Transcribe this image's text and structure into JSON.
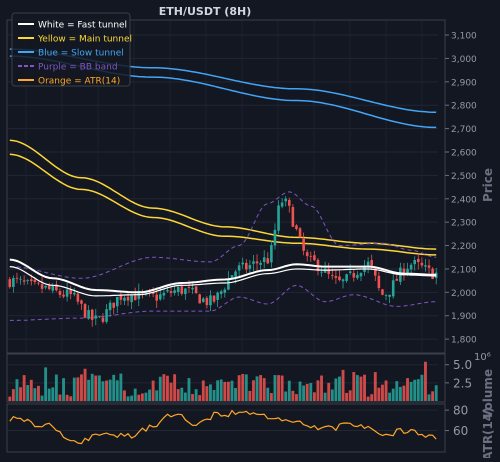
{
  "chart_data": {
    "type": "candlestick",
    "title": "ETH/USDT (8H)",
    "colors": {
      "background": "#131722",
      "up": "#26a69a",
      "down": "#ef5350",
      "fast": "#ffffff",
      "main": "#fdd835",
      "slow": "#42a5f5",
      "bb": "#7e57c2",
      "atr": "#ffa726"
    },
    "legend": {
      "placement": "top-left",
      "items": [
        {
          "label": "White = Fast tunnel",
          "color": "#ffffff",
          "dash": false
        },
        {
          "label": "Yellow = Main tunnel",
          "color": "#fdd835",
          "dash": false
        },
        {
          "label": "Blue = Slow tunnel",
          "color": "#42a5f5",
          "dash": false
        },
        {
          "label": "Purple = BB band",
          "color": "#7e57c2",
          "dash": true
        },
        {
          "label": "Orange = ATR(14)",
          "color": "#ffa726",
          "dash": false
        }
      ]
    },
    "price_panel": {
      "ylabel": "Price",
      "ylim": [
        1745,
        3160
      ],
      "ticks": [
        1800,
        1900,
        2000,
        2100,
        2200,
        2300,
        2400,
        2500,
        2600,
        2700,
        2800,
        2900,
        3000,
        3100
      ],
      "tick_labels": [
        "1,800",
        "1,900",
        "2,000",
        "2,100",
        "2,200",
        "2,300",
        "2,400",
        "2,500",
        "2,600",
        "2,700",
        "2,800",
        "2,900",
        "3,000",
        "3,100"
      ],
      "grid": true
    },
    "volume_panel": {
      "ylabel": "Volume",
      "exponent_label": "10⁶",
      "ylim": [
        0,
        6.2
      ],
      "ticks": [
        2.5,
        5.0
      ],
      "tick_labels": [
        "2.5",
        "5.0"
      ]
    },
    "atr_panel": {
      "ylabel": "ATR(14)",
      "ylim": [
        40,
        85
      ],
      "ticks": [
        60,
        80
      ],
      "tick_labels": [
        "60",
        "80"
      ]
    },
    "n_bars": 120,
    "close_anchors": [
      [
        0,
        2050
      ],
      [
        8,
        2020
      ],
      [
        16,
        1990
      ],
      [
        24,
        1880
      ],
      [
        32,
        1990
      ],
      [
        40,
        1980
      ],
      [
        48,
        2010
      ],
      [
        56,
        1960
      ],
      [
        64,
        2100
      ],
      [
        72,
        2140
      ],
      [
        76,
        2390
      ],
      [
        84,
        2130
      ],
      [
        92,
        2040
      ],
      [
        100,
        2120
      ],
      [
        104,
        1990
      ],
      [
        112,
        2120
      ],
      [
        119,
        2080
      ]
    ],
    "atr_anchors": [
      [
        0,
        72
      ],
      [
        10,
        65
      ],
      [
        18,
        49
      ],
      [
        26,
        56
      ],
      [
        34,
        55
      ],
      [
        40,
        65
      ],
      [
        46,
        76
      ],
      [
        52,
        67
      ],
      [
        58,
        76
      ],
      [
        66,
        78
      ],
      [
        72,
        73
      ],
      [
        80,
        68
      ],
      [
        88,
        62
      ],
      [
        96,
        66
      ],
      [
        104,
        57
      ],
      [
        112,
        60
      ],
      [
        119,
        52
      ]
    ],
    "fast_tunnel": [
      [
        0,
        2140
      ],
      [
        12,
        2060
      ],
      [
        24,
        2010
      ],
      [
        36,
        2000
      ],
      [
        48,
        2040
      ],
      [
        60,
        2055
      ],
      [
        72,
        2095
      ],
      [
        80,
        2120
      ],
      [
        88,
        2110
      ],
      [
        100,
        2110
      ],
      [
        110,
        2080
      ],
      [
        119,
        2075
      ]
    ],
    "fast_tunnel_lower": [
      [
        0,
        2110
      ],
      [
        12,
        2030
      ],
      [
        24,
        1985
      ],
      [
        36,
        1990
      ],
      [
        48,
        2030
      ],
      [
        60,
        2040
      ],
      [
        72,
        2080
      ],
      [
        80,
        2100
      ],
      [
        88,
        2095
      ],
      [
        100,
        2100
      ],
      [
        110,
        2075
      ],
      [
        119,
        2070
      ]
    ],
    "main_tunnel": [
      [
        0,
        2650
      ],
      [
        20,
        2490
      ],
      [
        40,
        2360
      ],
      [
        60,
        2280
      ],
      [
        80,
        2235
      ],
      [
        100,
        2210
      ],
      [
        119,
        2185
      ]
    ],
    "main_tunnel_lower": [
      [
        0,
        2590
      ],
      [
        20,
        2440
      ],
      [
        40,
        2320
      ],
      [
        60,
        2240
      ],
      [
        80,
        2210
      ],
      [
        100,
        2185
      ],
      [
        119,
        2160
      ]
    ],
    "slow_tunnel": [
      [
        0,
        3040
      ],
      [
        40,
        2960
      ],
      [
        80,
        2870
      ],
      [
        119,
        2770
      ]
    ],
    "slow_tunnel_lower": [
      [
        0,
        3010
      ],
      [
        40,
        2920
      ],
      [
        80,
        2820
      ],
      [
        119,
        2705
      ]
    ],
    "bb_upper": [
      [
        0,
        2110
      ],
      [
        20,
        2060
      ],
      [
        40,
        2150
      ],
      [
        56,
        2130
      ],
      [
        64,
        2200
      ],
      [
        72,
        2380
      ],
      [
        78,
        2430
      ],
      [
        84,
        2370
      ],
      [
        92,
        2200
      ],
      [
        104,
        2210
      ],
      [
        112,
        2180
      ],
      [
        119,
        2150
      ]
    ],
    "bb_lower": [
      [
        0,
        1880
      ],
      [
        20,
        1890
      ],
      [
        40,
        1920
      ],
      [
        56,
        1920
      ],
      [
        64,
        1980
      ],
      [
        72,
        1950
      ],
      [
        80,
        2030
      ],
      [
        88,
        1960
      ],
      [
        96,
        1990
      ],
      [
        108,
        1940
      ],
      [
        119,
        1960
      ]
    ]
  }
}
